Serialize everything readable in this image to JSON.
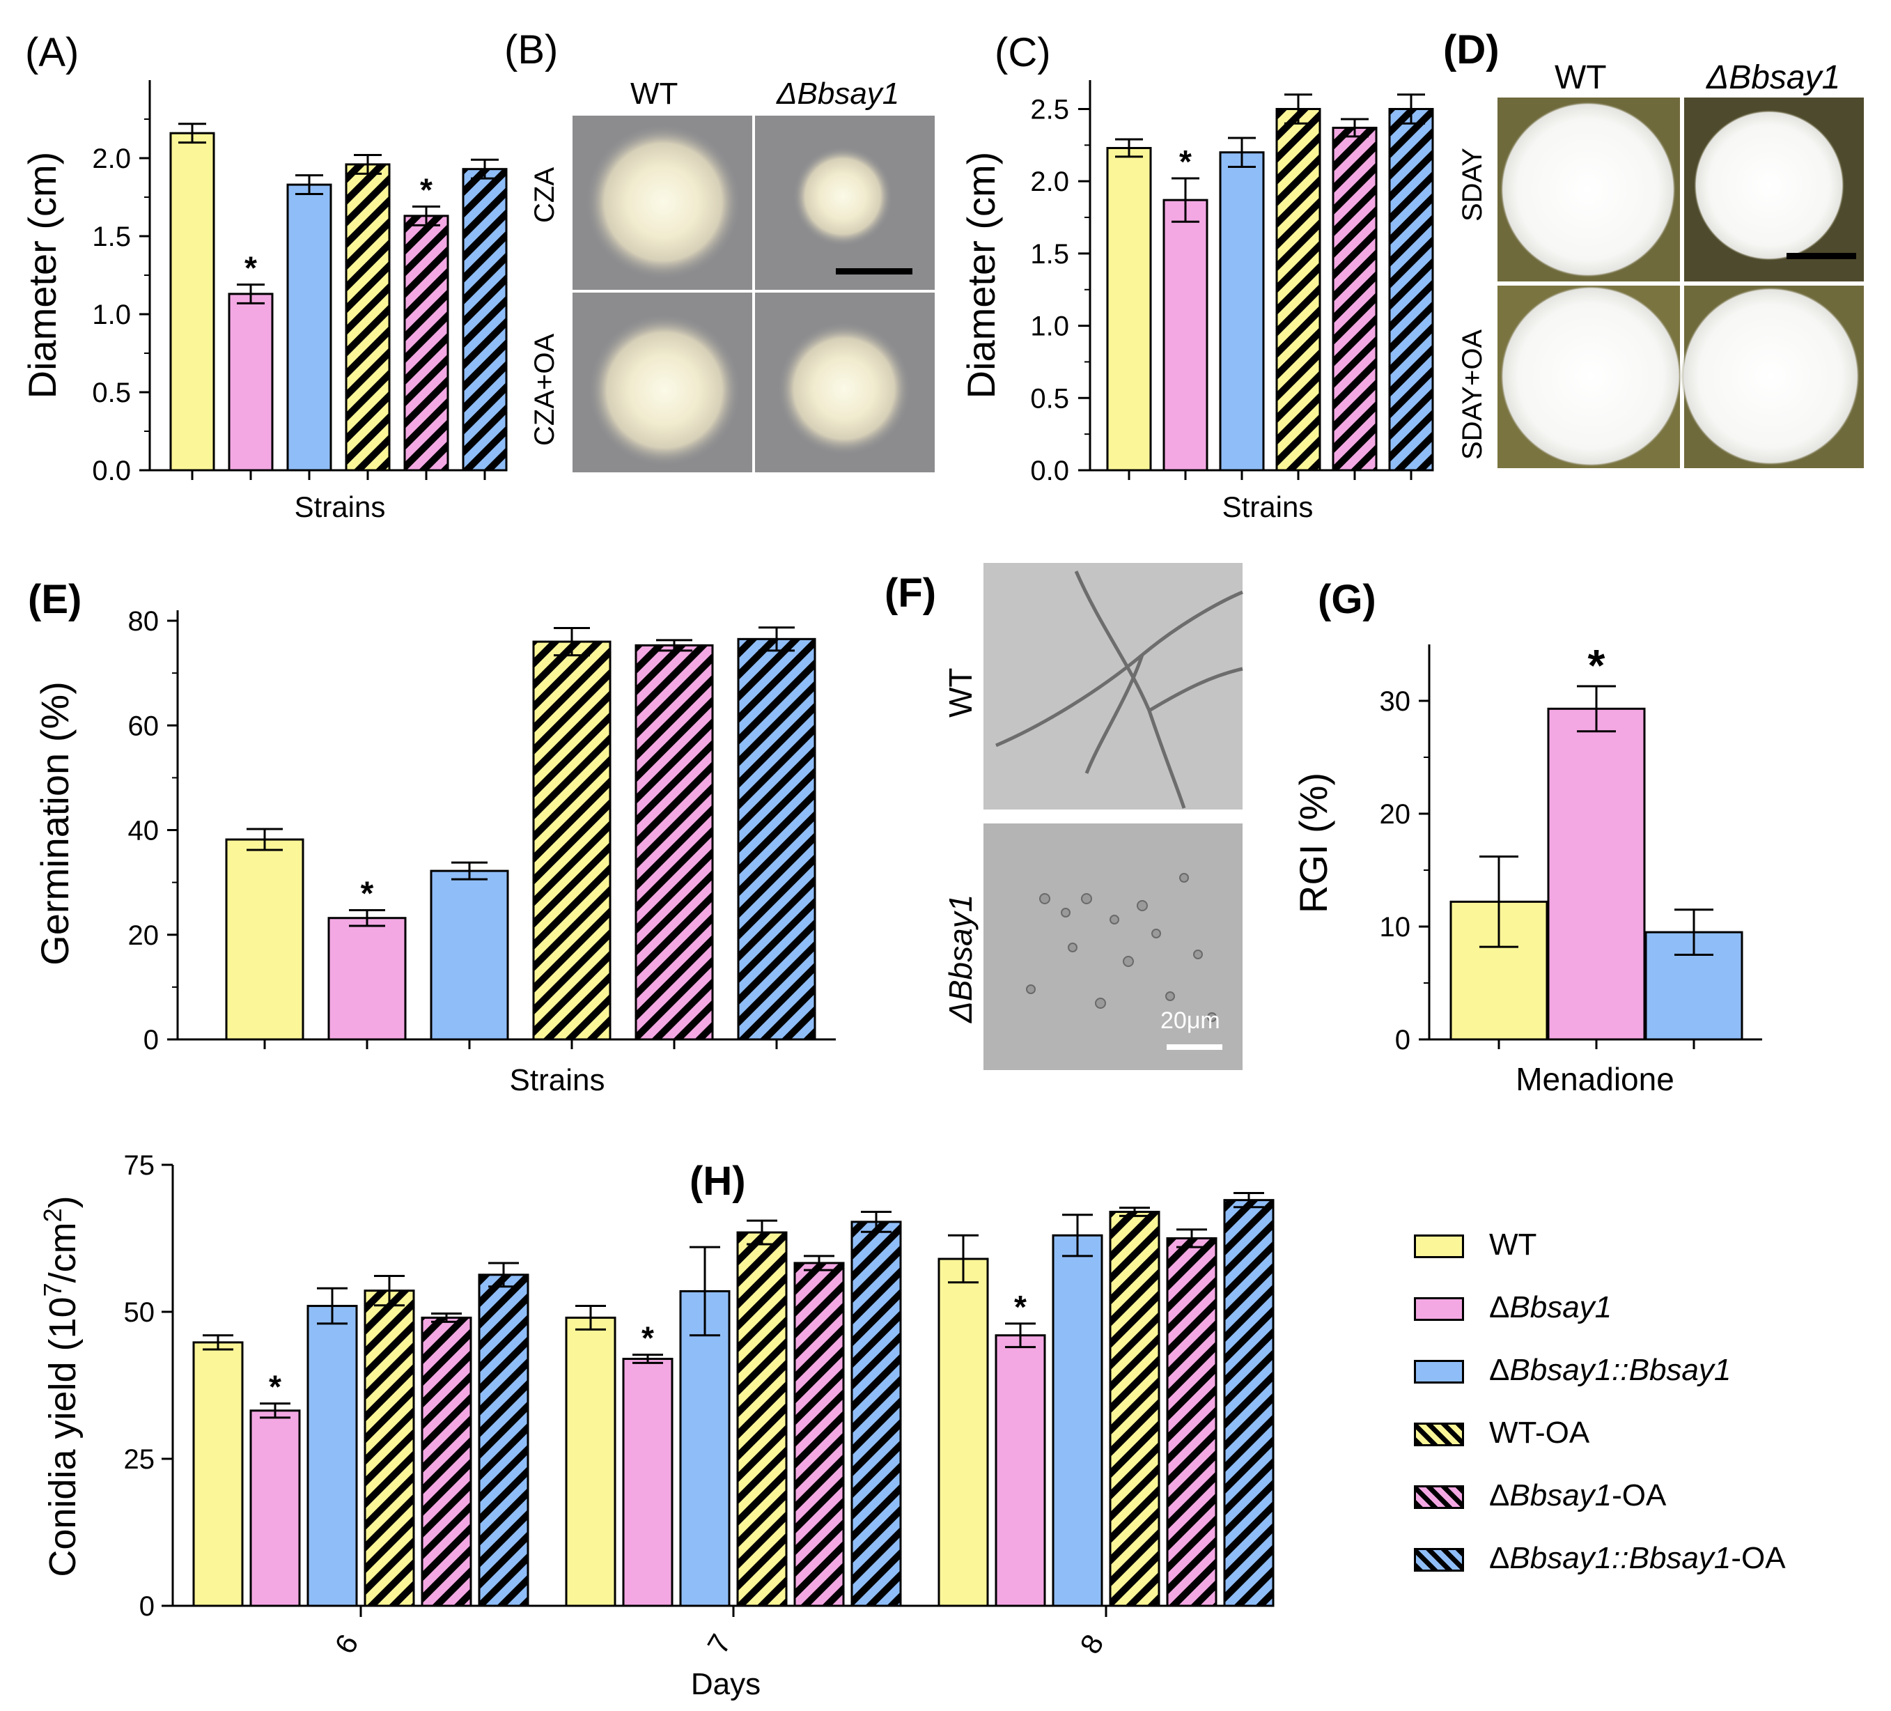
{
  "colors": {
    "wt": "#fbf698",
    "del": "#f3a8e3",
    "comp": "#8fbdf7",
    "stroke": "#000000",
    "photo_bg_B": "#8c8c8f",
    "photo_bg_D": "#6f6a3c",
    "micro_bg": "#bcbcbc"
  },
  "legend": [
    {
      "series": "wt",
      "pattern": false,
      "label_a": "WT",
      "label_b": "",
      "label_c": ""
    },
    {
      "series": "del",
      "pattern": false,
      "label_a": "Δ",
      "label_b": "Bbsay1",
      "label_c": ""
    },
    {
      "series": "comp",
      "pattern": false,
      "label_a": "Δ",
      "label_b": "Bbsay1::Bbsay1",
      "label_c": ""
    },
    {
      "series": "wt",
      "pattern": true,
      "label_a": "WT-OA",
      "label_b": "",
      "label_c": ""
    },
    {
      "series": "del",
      "pattern": true,
      "label_a": "Δ",
      "label_b": "Bbsay1",
      "label_c": "-OA"
    },
    {
      "series": "comp",
      "pattern": true,
      "label_a": "Δ",
      "label_b": "Bbsay1::Bbsay1",
      "label_c": "-OA"
    }
  ],
  "panels": {
    "B": {
      "label": "(B)",
      "col_wt": "WT",
      "col_del": "ΔBbsay1",
      "row1": "CZA",
      "row2": "CZA+OA"
    },
    "D": {
      "label": "(D)",
      "col_wt": "WT",
      "col_del": "ΔBbsay1",
      "row1": "SDAY",
      "row2": "SDAY+OA"
    },
    "F": {
      "label": "(F)",
      "row1": "WT",
      "row2": "ΔBbsay1",
      "scale": "20μm"
    }
  },
  "chart_data": [
    {
      "id": "A",
      "type": "bar",
      "panel_label": "(A)",
      "title": "",
      "xlabel": "Strains",
      "ylabel": "Diameter (cm)",
      "ylim": [
        0,
        2.5
      ],
      "yticks": [
        "0.0",
        "0.5",
        "1.0",
        "1.5",
        "2.0"
      ],
      "categories": [
        "WT",
        "ΔBbsay1",
        "ΔBbsay1::Bbsay1",
        "WT-OA",
        "ΔBbsay1-OA",
        "ΔBbsay1::Bbsay1-OA"
      ],
      "values": [
        2.16,
        1.13,
        1.83,
        1.96,
        1.63,
        1.93
      ],
      "errors": [
        0.06,
        0.06,
        0.06,
        0.06,
        0.06,
        0.06
      ],
      "sig": [
        "",
        "*",
        "",
        "",
        "*",
        ""
      ]
    },
    {
      "id": "C",
      "type": "bar",
      "panel_label": "(C)",
      "title": "",
      "xlabel": "Strains",
      "ylabel": "Diameter (cm)",
      "ylim": [
        0,
        2.7
      ],
      "yticks": [
        "0.0",
        "0.5",
        "1.0",
        "1.5",
        "2.0",
        "2.5"
      ],
      "categories": [
        "WT",
        "ΔBbsay1",
        "ΔBbsay1::Bbsay1",
        "WT-OA",
        "ΔBbsay1-OA",
        "ΔBbsay1::Bbsay1-OA"
      ],
      "values": [
        2.23,
        1.87,
        2.2,
        2.5,
        2.37,
        2.5
      ],
      "errors": [
        0.06,
        0.15,
        0.1,
        0.1,
        0.06,
        0.1
      ],
      "sig": [
        "",
        "*",
        "",
        "",
        "",
        ""
      ]
    },
    {
      "id": "E",
      "type": "bar",
      "panel_label": "(E)",
      "title": "",
      "xlabel": "Strains",
      "ylabel": "Germination (%)",
      "ylim": [
        0,
        82
      ],
      "yticks": [
        "0",
        "20",
        "40",
        "60",
        "80"
      ],
      "categories": [
        "WT",
        "ΔBbsay1",
        "ΔBbsay1::Bbsay1",
        "WT-OA",
        "ΔBbsay1-OA",
        "ΔBbsay1::Bbsay1-OA"
      ],
      "values": [
        38.2,
        23.2,
        32.2,
        76,
        75.3,
        76.5
      ],
      "errors": [
        2,
        1.5,
        1.6,
        2.6,
        1,
        2.2
      ],
      "sig": [
        "",
        "*",
        "",
        "",
        "",
        ""
      ]
    },
    {
      "id": "G",
      "type": "bar",
      "panel_label": "(G)",
      "title": "",
      "xlabel": "Menadione",
      "ylabel": "RGI (%)",
      "ylim": [
        0,
        35
      ],
      "yticks": [
        "0",
        "10",
        "20",
        "30"
      ],
      "categories": [
        "WT",
        "ΔBbsay1",
        "ΔBbsay1::Bbsay1"
      ],
      "values": [
        12.2,
        29.3,
        9.5
      ],
      "errors": [
        4,
        2,
        2
      ],
      "sig": [
        "",
        "*",
        ""
      ]
    },
    {
      "id": "H",
      "type": "bar",
      "panel_label": "(H)",
      "title": "",
      "xlabel": "Days",
      "ylabel_main": "Conidia yield (10",
      "ylabel_sup": "7",
      "ylabel_end": "/cm",
      "ylabel_sup2": "2",
      "ylabel_close": ")",
      "ylim": [
        0,
        75
      ],
      "yticks": [
        "0",
        "25",
        "50",
        "75"
      ],
      "categories": [
        "6",
        "7",
        "8"
      ],
      "series": [
        {
          "name": "WT",
          "values": [
            44.8,
            49,
            59
          ],
          "errors": [
            1.2,
            2,
            4
          ]
        },
        {
          "name": "ΔBbsay1",
          "values": [
            33.2,
            42,
            46
          ],
          "errors": [
            1.2,
            0.7,
            2
          ]
        },
        {
          "name": "ΔBbsay1::Bbsay1",
          "values": [
            51,
            53.5,
            63
          ],
          "errors": [
            3,
            7.5,
            3.5
          ]
        },
        {
          "name": "WT-OA",
          "values": [
            53.6,
            63.5,
            67
          ],
          "errors": [
            2.5,
            2,
            0.7
          ]
        },
        {
          "name": "ΔBbsay1-OA",
          "values": [
            49,
            58.3,
            62.5
          ],
          "errors": [
            0.7,
            1.2,
            1.5
          ]
        },
        {
          "name": "ΔBbsay1::Bbsay1-OA",
          "values": [
            56.3,
            65.3,
            69
          ],
          "errors": [
            2,
            1.7,
            1.2
          ]
        }
      ],
      "sig": [
        [
          "",
          "*",
          "",
          "",
          "",
          ""
        ],
        [
          "",
          "*",
          "",
          "",
          "",
          ""
        ],
        [
          "",
          "*",
          "",
          "",
          "",
          ""
        ]
      ]
    }
  ]
}
